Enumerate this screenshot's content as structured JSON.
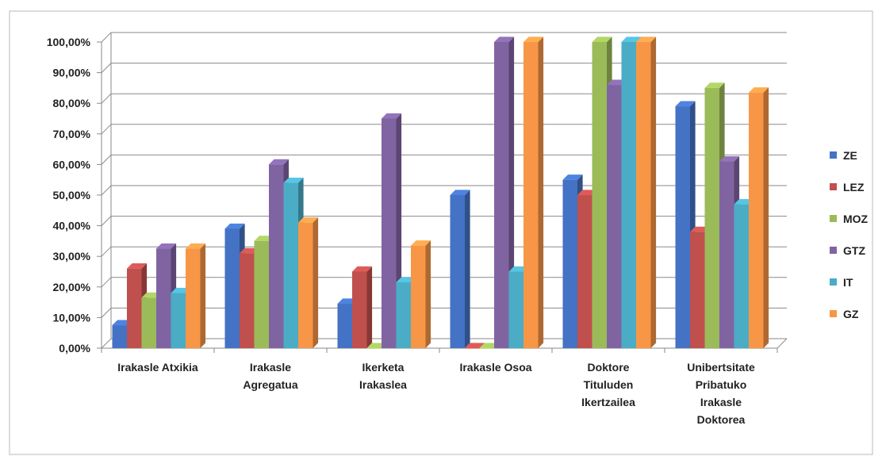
{
  "chart_data": {
    "type": "bar",
    "title": "",
    "xlabel": "",
    "ylabel": "",
    "ylim": [
      0,
      100
    ],
    "y_ticks": [
      "0,00%",
      "10,00%",
      "20,00%",
      "30,00%",
      "40,00%",
      "50,00%",
      "60,00%",
      "70,00%",
      "80,00%",
      "90,00%",
      "100,00%"
    ],
    "grid": true,
    "legend_position": "right",
    "categories": [
      [
        "Irakasle Atxikia"
      ],
      [
        "Irakasle",
        "Agregatua"
      ],
      [
        "Ikerketa",
        "Irakaslea"
      ],
      [
        "Irakasle Osoa"
      ],
      [
        "Doktore",
        "Tituluden",
        "Ikertzailea"
      ],
      [
        "Unibertsitate",
        "Pribatuko",
        "Irakasle",
        "Doktorea"
      ]
    ],
    "series": [
      {
        "name": "ZE",
        "color": "#4472C4",
        "values": [
          7.5,
          39,
          14.5,
          50,
          55,
          79
        ]
      },
      {
        "name": "LEZ",
        "color": "#C0504D",
        "values": [
          26,
          31,
          25,
          0,
          50,
          38
        ]
      },
      {
        "name": "MOZ",
        "color": "#9BBB59",
        "values": [
          16.5,
          35,
          0,
          0,
          100,
          85
        ]
      },
      {
        "name": "GTZ",
        "color": "#8064A2",
        "values": [
          32.5,
          60,
          75,
          100,
          86,
          61
        ]
      },
      {
        "name": "IT",
        "color": "#4BACC6",
        "values": [
          18,
          54,
          21.5,
          25,
          100,
          47
        ]
      },
      {
        "name": "GZ",
        "color": "#F79646",
        "values": [
          32.5,
          41,
          33.5,
          100,
          100,
          83.5
        ]
      }
    ]
  }
}
